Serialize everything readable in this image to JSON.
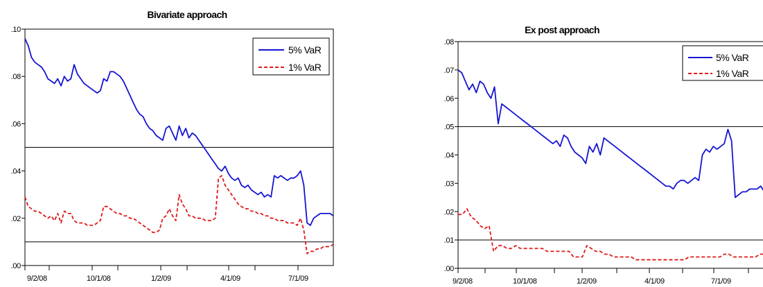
{
  "chart_data": [
    {
      "type": "line",
      "title": "Bivariate approach",
      "xlabel": "",
      "ylabel": "",
      "x_tick_labels": [
        "9/2/08",
        "10/1/08",
        "1/2/09",
        "4/1/09",
        "7/1/09"
      ],
      "y_tick_labels": [
        ".00",
        ".02",
        ".04",
        ".06",
        ".08",
        ".10"
      ],
      "y_ticks": [
        0,
        0.02,
        0.04,
        0.06,
        0.08,
        0.1
      ],
      "ylim": [
        0,
        0.1
      ],
      "grid": false,
      "legend_position": "top-right",
      "reference_lines": [
        0.05,
        0.01
      ],
      "colors": {
        "var5": "#1414d2",
        "var1": "#e01818",
        "ref": "#000000"
      },
      "series": [
        {
          "name": "5% VaR",
          "style": "solid",
          "values": [
            0.096,
            0.093,
            0.088,
            0.086,
            0.085,
            0.084,
            0.082,
            0.079,
            0.078,
            0.077,
            0.079,
            0.076,
            0.08,
            0.078,
            0.079,
            0.085,
            0.081,
            0.079,
            0.077,
            0.076,
            0.075,
            0.074,
            0.073,
            0.074,
            0.079,
            0.078,
            0.082,
            0.082,
            0.081,
            0.08,
            0.078,
            0.075,
            0.072,
            0.069,
            0.066,
            0.064,
            0.063,
            0.06,
            0.058,
            0.057,
            0.055,
            0.054,
            0.053,
            0.058,
            0.059,
            0.056,
            0.053,
            0.059,
            0.055,
            0.058,
            0.054,
            0.056,
            0.055,
            0.053,
            0.051,
            0.049,
            0.047,
            0.045,
            0.043,
            0.041,
            0.04,
            0.042,
            0.039,
            0.037,
            0.036,
            0.037,
            0.034,
            0.033,
            0.034,
            0.032,
            0.031,
            0.03,
            0.031,
            0.029,
            0.03,
            0.029,
            0.038,
            0.037,
            0.038,
            0.037,
            0.036,
            0.037,
            0.037,
            0.038,
            0.04,
            0.034,
            0.018,
            0.017,
            0.02,
            0.021,
            0.022,
            0.022,
            0.022,
            0.022,
            0.021
          ]
        },
        {
          "name": "1% VaR",
          "style": "dashed",
          "values": [
            0.029,
            0.025,
            0.024,
            0.023,
            0.023,
            0.022,
            0.021,
            0.02,
            0.021,
            0.019,
            0.022,
            0.018,
            0.023,
            0.022,
            0.022,
            0.019,
            0.018,
            0.018,
            0.018,
            0.017,
            0.017,
            0.017,
            0.018,
            0.019,
            0.025,
            0.025,
            0.024,
            0.023,
            0.022,
            0.022,
            0.021,
            0.021,
            0.02,
            0.02,
            0.019,
            0.018,
            0.017,
            0.016,
            0.015,
            0.014,
            0.014,
            0.015,
            0.02,
            0.021,
            0.024,
            0.021,
            0.019,
            0.03,
            0.026,
            0.024,
            0.021,
            0.021,
            0.02,
            0.02,
            0.02,
            0.019,
            0.019,
            0.019,
            0.02,
            0.037,
            0.038,
            0.034,
            0.032,
            0.03,
            0.028,
            0.026,
            0.025,
            0.024,
            0.024,
            0.023,
            0.023,
            0.022,
            0.022,
            0.021,
            0.021,
            0.02,
            0.02,
            0.019,
            0.019,
            0.019,
            0.018,
            0.018,
            0.018,
            0.017,
            0.02,
            0.015,
            0.005,
            0.006,
            0.006,
            0.007,
            0.007,
            0.008,
            0.008,
            0.008,
            0.009
          ]
        }
      ]
    },
    {
      "type": "line",
      "title": "Ex post approach",
      "xlabel": "",
      "ylabel": "",
      "x_tick_labels": [
        "9/2/08",
        "10/1/08",
        "1/2/09",
        "4/1/09",
        "7/1/09"
      ],
      "y_tick_labels": [
        ".00",
        ".01",
        ".02",
        ".03",
        ".04",
        ".05",
        ".06",
        ".07",
        ".08"
      ],
      "y_ticks": [
        0,
        0.01,
        0.02,
        0.03,
        0.04,
        0.05,
        0.06,
        0.07,
        0.08
      ],
      "ylim": [
        0,
        0.08
      ],
      "grid": false,
      "legend_position": "top-right",
      "reference_lines": [
        0.05,
        0.01
      ],
      "colors": {
        "var5": "#1414d2",
        "var1": "#e01818",
        "ref": "#000000"
      },
      "series": [
        {
          "name": "5% VaR",
          "style": "solid",
          "values": [
            0.07,
            0.069,
            0.066,
            0.063,
            0.065,
            0.062,
            0.066,
            0.065,
            0.062,
            0.06,
            0.064,
            0.051,
            0.058,
            0.057,
            0.056,
            0.055,
            0.054,
            0.053,
            0.052,
            0.051,
            0.05,
            0.049,
            0.048,
            0.047,
            0.046,
            0.045,
            0.044,
            0.045,
            0.043,
            0.047,
            0.046,
            0.043,
            0.041,
            0.04,
            0.039,
            0.037,
            0.043,
            0.041,
            0.044,
            0.04,
            0.046,
            0.045,
            0.044,
            0.043,
            0.042,
            0.041,
            0.04,
            0.039,
            0.038,
            0.037,
            0.036,
            0.035,
            0.034,
            0.033,
            0.032,
            0.031,
            0.03,
            0.029,
            0.029,
            0.028,
            0.03,
            0.031,
            0.031,
            0.03,
            0.031,
            0.032,
            0.031,
            0.04,
            0.042,
            0.041,
            0.043,
            0.042,
            0.043,
            0.044,
            0.049,
            0.045,
            0.025,
            0.026,
            0.027,
            0.027,
            0.028,
            0.028,
            0.028,
            0.029,
            0.027
          ]
        },
        {
          "name": "1% VaR",
          "style": "dashed",
          "values": [
            0.019,
            0.019,
            0.021,
            0.018,
            0.017,
            0.015,
            0.014,
            0.015,
            0.006,
            0.008,
            0.008,
            0.007,
            0.007,
            0.008,
            0.007,
            0.007,
            0.007,
            0.007,
            0.007,
            0.007,
            0.006,
            0.006,
            0.006,
            0.006,
            0.006,
            0.006,
            0.004,
            0.004,
            0.004,
            0.008,
            0.007,
            0.006,
            0.006,
            0.005,
            0.005,
            0.004,
            0.004,
            0.004,
            0.004,
            0.004,
            0.003,
            0.003,
            0.003,
            0.003,
            0.003,
            0.003,
            0.003,
            0.003,
            0.003,
            0.003,
            0.003,
            0.003,
            0.004,
            0.004,
            0.004,
            0.004,
            0.004,
            0.004,
            0.004,
            0.004,
            0.005,
            0.005,
            0.004,
            0.004,
            0.004,
            0.004,
            0.004,
            0.004,
            0.005,
            0.005
          ]
        }
      ]
    }
  ]
}
